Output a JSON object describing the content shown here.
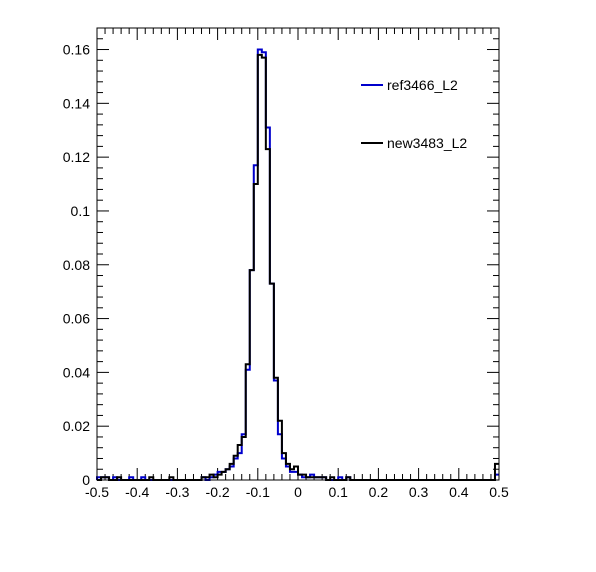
{
  "chart_data": {
    "type": "line",
    "title": "",
    "xlabel": "",
    "ylabel": "",
    "xlim": [
      -0.5,
      0.5
    ],
    "ylim": [
      0,
      0.168
    ],
    "x_ticks": [
      -0.5,
      -0.4,
      -0.3,
      -0.2,
      -0.1,
      0,
      0.1,
      0.2,
      0.3,
      0.4,
      0.5
    ],
    "x_tick_labels": [
      "-0.5",
      "-0.4",
      "-0.3",
      "-0.2",
      "-0.1",
      "0",
      "0.1",
      "0.2",
      "0.3",
      "0.4",
      "0.5"
    ],
    "y_ticks": [
      0,
      0.02,
      0.04,
      0.06,
      0.08,
      0.1,
      0.12,
      0.14,
      0.16
    ],
    "y_tick_labels": [
      "0",
      "0.02",
      "0.04",
      "0.06",
      "0.08",
      "0.1",
      "0.12",
      "0.14",
      "0.16"
    ],
    "grid": false,
    "legend_position": "top-right",
    "bin_width": 0.01,
    "bin_start": -0.5,
    "series": [
      {
        "name": "ref3466_L2",
        "color": "#0000cc",
        "values": [
          0.001,
          0.001,
          0.001,
          0,
          0.001,
          0,
          0,
          0,
          0.001,
          0,
          0,
          0.001,
          0,
          0,
          0,
          0,
          0,
          0,
          0,
          0,
          0,
          0,
          0,
          0,
          0,
          0,
          0.001,
          0,
          0.001,
          0.002,
          0.003,
          0.003,
          0.004,
          0.005,
          0.008,
          0.01,
          0.017,
          0.041,
          0.078,
          0.117,
          0.16,
          0.159,
          0.131,
          0.073,
          0.037,
          0.017,
          0.008,
          0.005,
          0.003,
          0.003,
          0.002,
          0.001,
          0.001,
          0.002,
          0.001,
          0.001,
          0.001,
          0,
          0,
          0,
          0.001,
          0,
          0.001,
          0,
          0,
          0,
          0,
          0,
          0,
          0,
          0,
          0,
          0,
          0,
          0,
          0,
          0,
          0,
          0,
          0,
          0,
          0,
          0,
          0,
          0,
          0,
          0,
          0,
          0,
          0,
          0,
          0,
          0,
          0,
          0,
          0,
          0,
          0,
          0,
          0.002
        ]
      },
      {
        "name": "new3483_L2",
        "color": "#000000",
        "values": [
          0,
          0.001,
          0.001,
          0,
          0,
          0.001,
          0,
          0,
          0,
          0,
          0,
          0,
          0,
          0.001,
          0,
          0,
          0,
          0,
          0.001,
          0,
          0,
          0,
          0,
          0,
          0,
          0,
          0.001,
          0.001,
          0.002,
          0.001,
          0.002,
          0.003,
          0.004,
          0.006,
          0.009,
          0.013,
          0.016,
          0.043,
          0.078,
          0.11,
          0.158,
          0.157,
          0.123,
          0.073,
          0.038,
          0.022,
          0.01,
          0.006,
          0.004,
          0.005,
          0.002,
          0.002,
          0.001,
          0.001,
          0.001,
          0.001,
          0.001,
          0,
          0.001,
          0,
          0,
          0,
          0.001,
          0,
          0,
          0,
          0,
          0,
          0,
          0,
          0,
          0,
          0,
          0,
          0,
          0,
          0,
          0,
          0,
          0,
          0,
          0,
          0,
          0,
          0,
          0,
          0,
          0,
          0,
          0,
          0,
          0,
          0,
          0,
          0,
          0,
          0,
          0,
          0,
          0.006
        ]
      }
    ]
  }
}
